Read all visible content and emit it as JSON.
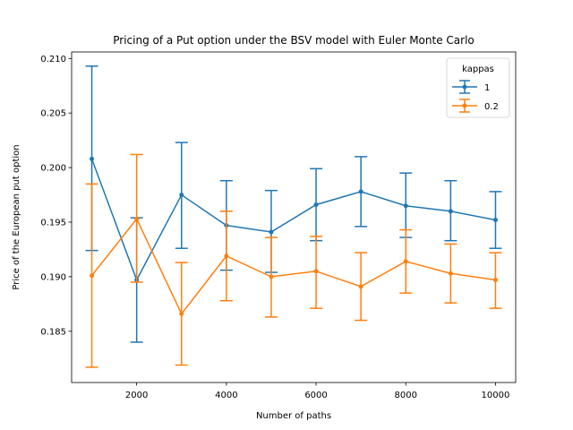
{
  "chart_data": {
    "type": "line",
    "title": "Pricing of a Put option under the BSV model with Euler Monte Carlo",
    "xlabel": "Number of paths",
    "ylabel": "Price of the European put option",
    "xlim": [
      550,
      10450
    ],
    "ylim": [
      0.1803,
      0.2106
    ],
    "xticks": [
      2000,
      4000,
      6000,
      8000,
      10000
    ],
    "xtick_labels": [
      "2000",
      "4000",
      "6000",
      "8000",
      "10000"
    ],
    "yticks": [
      0.185,
      0.19,
      0.195,
      0.2,
      0.205,
      0.21
    ],
    "ytick_labels": [
      "0.185",
      "0.190",
      "0.195",
      "0.200",
      "0.205",
      "0.210"
    ],
    "grid": false,
    "legend": {
      "title": "kappas",
      "placement": "top-right"
    },
    "x": [
      1000,
      2000,
      3000,
      4000,
      5000,
      6000,
      7000,
      8000,
      9000,
      10000
    ],
    "series": [
      {
        "name": "1",
        "color": "#1f77b4",
        "values": [
          0.2008,
          0.1897,
          0.1975,
          0.1947,
          0.1941,
          0.1966,
          0.1978,
          0.1965,
          0.196,
          0.1952
        ],
        "err_low": [
          0.1924,
          0.184,
          0.1926,
          0.1906,
          0.1904,
          0.1933,
          0.1946,
          0.1936,
          0.1933,
          0.1926
        ],
        "err_high": [
          0.2093,
          0.1954,
          0.2023,
          0.1988,
          0.1979,
          0.1999,
          0.201,
          0.1995,
          0.1988,
          0.1978
        ]
      },
      {
        "name": "0.2",
        "color": "#ff7f0e",
        "values": [
          0.1901,
          0.1953,
          0.1866,
          0.1919,
          0.19,
          0.1905,
          0.1891,
          0.1914,
          0.1903,
          0.1897
        ],
        "err_low": [
          0.1817,
          0.1895,
          0.1819,
          0.1878,
          0.1863,
          0.1871,
          0.186,
          0.1885,
          0.1876,
          0.1871
        ],
        "err_high": [
          0.1985,
          0.2012,
          0.1913,
          0.196,
          0.1936,
          0.1937,
          0.1922,
          0.1943,
          0.193,
          0.1922
        ]
      }
    ]
  }
}
